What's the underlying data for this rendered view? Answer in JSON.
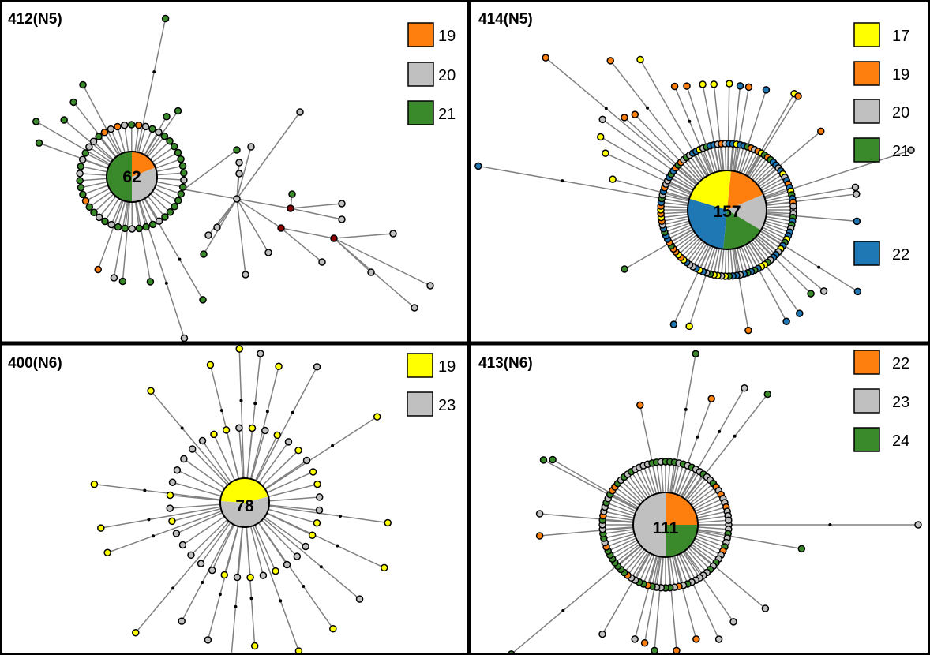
{
  "colors": {
    "yellow": "#ffff00",
    "orange": "#ff7f0e",
    "gray": "#c0c0c0",
    "green": "#3a8a2c",
    "blue": "#1f77b4",
    "maroon": "#8b0000",
    "edge": "#808080"
  },
  "panels": [
    {
      "id": "412",
      "title": "412(N5)",
      "center_count": "62",
      "center_slices": [
        {
          "color": "orange",
          "fraction": 0.19
        },
        {
          "color": "gray",
          "fraction": 0.31
        },
        {
          "color": "green",
          "fraction": 0.5
        }
      ],
      "legend": [
        {
          "label": "19",
          "color": "orange"
        },
        {
          "label": "20",
          "color": "gray"
        },
        {
          "label": "21",
          "color": "green"
        }
      ]
    },
    {
      "id": "414",
      "title": "414(N5)",
      "center_count": "157",
      "center_slices": [
        {
          "color": "orange",
          "fraction": 0.17
        },
        {
          "color": "gray",
          "fraction": 0.15
        },
        {
          "color": "green",
          "fraction": 0.18
        },
        {
          "color": "blue",
          "fraction": 0.28
        },
        {
          "color": "yellow",
          "fraction": 0.22
        }
      ],
      "legend": [
        {
          "label": "17",
          "color": "yellow"
        },
        {
          "label": "19",
          "color": "orange"
        },
        {
          "label": "20",
          "color": "gray"
        },
        {
          "label": "21",
          "color": "green"
        },
        {
          "label": "22",
          "color": "blue"
        }
      ]
    },
    {
      "id": "400",
      "title": "400(N6)",
      "center_count": "78",
      "center_slices": [
        {
          "color": "yellow",
          "fraction": 0.45
        },
        {
          "color": "gray",
          "fraction": 0.55
        }
      ],
      "legend": [
        {
          "label": "19",
          "color": "yellow"
        },
        {
          "label": "23",
          "color": "gray"
        }
      ]
    },
    {
      "id": "413",
      "title": "413(N6)",
      "center_count": "111",
      "center_slices": [
        {
          "color": "orange",
          "fraction": 0.25
        },
        {
          "color": "green",
          "fraction": 0.25
        },
        {
          "color": "gray",
          "fraction": 0.5
        }
      ],
      "legend": [
        {
          "label": "22",
          "color": "orange"
        },
        {
          "label": "23",
          "color": "gray"
        },
        {
          "label": "24",
          "color": "green"
        }
      ]
    }
  ]
}
